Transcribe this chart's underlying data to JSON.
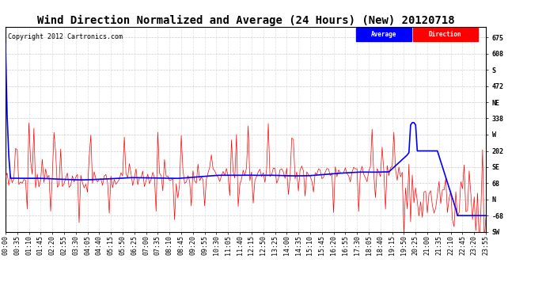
{
  "title": "Wind Direction Normalized and Average (24 Hours) (New) 20120718",
  "copyright": "Copyright 2012 Cartronics.com",
  "bg_color": "#ffffff",
  "plot_bg_color": "#ffffff",
  "grid_color": "#c0c0c0",
  "ylim": [
    -135,
    720
  ],
  "ylabel_right_positions": [
    675,
    608,
    540,
    472,
    405,
    338,
    270,
    202,
    135,
    68,
    0,
    -68,
    -135
  ],
  "ylabel_right_texts": [
    "675",
    "608",
    "S",
    "472",
    "NE",
    "338",
    "W",
    "202",
    "SE",
    "68",
    "N",
    "-68",
    "SW"
  ],
  "line_avg_color": "#0000ff",
  "line_dir_color": "#ff0000",
  "line_spikes_color": "#000000",
  "title_fontsize": 10,
  "copyright_fontsize": 6,
  "tick_fontsize": 6
}
